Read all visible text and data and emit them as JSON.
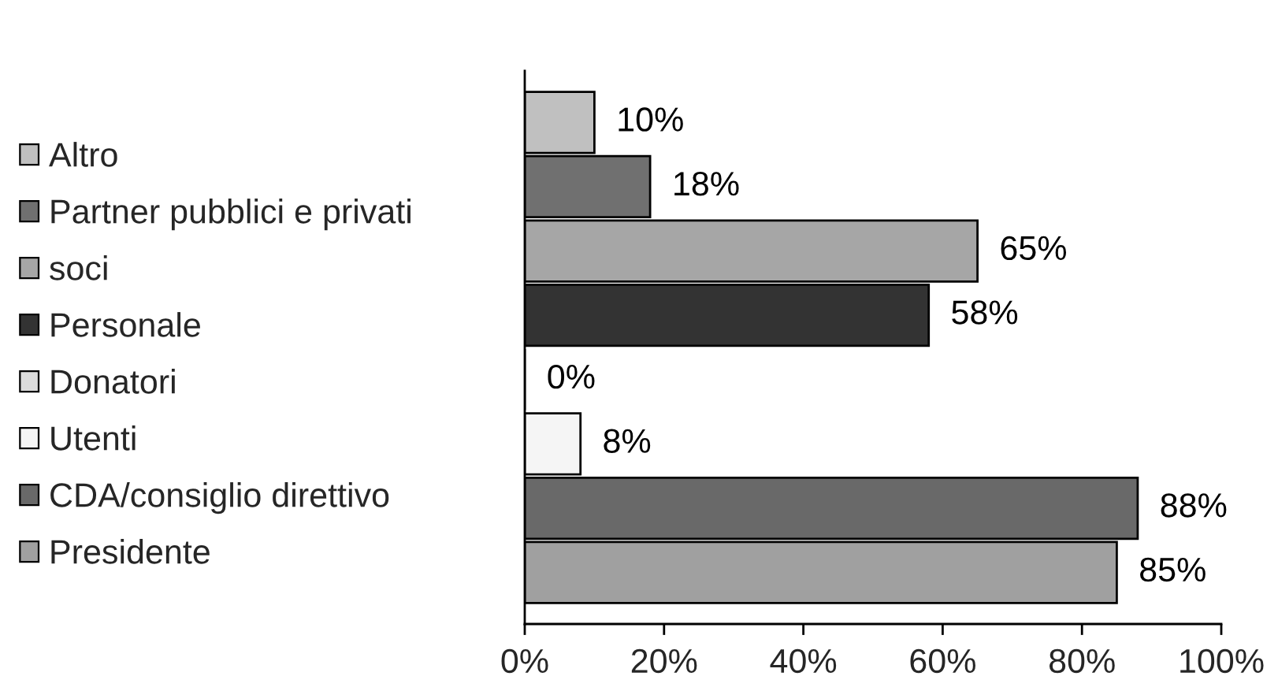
{
  "chart_data": {
    "type": "bar",
    "orientation": "horizontal",
    "stacked": true,
    "categories": [
      null,
      null,
      null,
      null,
      null,
      null,
      null,
      null
    ],
    "series": [
      {
        "name": "Altro",
        "color": "#c0c0c0",
        "values": [
          10,
          null,
          null,
          null,
          null,
          null,
          null,
          null
        ],
        "value_labels": [
          "10%",
          null,
          null,
          null,
          null,
          null,
          null,
          null
        ]
      },
      {
        "name": "Partner pubblici e privati",
        "color": "#707070",
        "values": [
          null,
          18,
          null,
          null,
          null,
          null,
          null,
          null
        ],
        "value_labels": [
          null,
          "18%",
          null,
          null,
          null,
          null,
          null,
          null
        ]
      },
      {
        "name": "soci",
        "color": "#a6a6a6",
        "values": [
          null,
          null,
          65,
          null,
          null,
          null,
          null,
          null
        ],
        "value_labels": [
          null,
          null,
          "65%",
          null,
          null,
          null,
          null,
          null
        ]
      },
      {
        "name": "Personale",
        "color": "#333333",
        "values": [
          null,
          null,
          null,
          58,
          null,
          null,
          null,
          null
        ],
        "value_labels": [
          null,
          null,
          null,
          "58%",
          null,
          null,
          null,
          null
        ]
      },
      {
        "name": "Donatori",
        "color": "#dcdcdc",
        "values": [
          null,
          null,
          null,
          null,
          0,
          null,
          null,
          null
        ],
        "value_labels": [
          null,
          null,
          null,
          null,
          "0%",
          null,
          null,
          null
        ]
      },
      {
        "name": "Utenti",
        "color": "#f5f5f5",
        "values": [
          null,
          null,
          null,
          null,
          null,
          8,
          null,
          null
        ],
        "value_labels": [
          null,
          null,
          null,
          null,
          null,
          "8%",
          null,
          null
        ]
      },
      {
        "name": "CDA/consiglio direttivo",
        "color": "#696969",
        "values": [
          null,
          null,
          null,
          null,
          null,
          null,
          88,
          null
        ],
        "value_labels": [
          null,
          null,
          null,
          null,
          null,
          null,
          "88%",
          null
        ]
      },
      {
        "name": "Presidente",
        "color": "#a0a0a0",
        "values": [
          null,
          null,
          null,
          null,
          null,
          null,
          null,
          85
        ],
        "value_labels": [
          null,
          null,
          null,
          null,
          null,
          null,
          null,
          "85%"
        ]
      }
    ],
    "xlim": [
      0,
      100
    ],
    "xticks": [
      {
        "value": 0,
        "label": "0%"
      },
      {
        "value": 20,
        "label": "20%"
      },
      {
        "value": 40,
        "label": "40%"
      },
      {
        "value": 60,
        "label": "60%"
      },
      {
        "value": 80,
        "label": "80%"
      },
      {
        "value": 100,
        "label": "100%"
      }
    ],
    "tick_labels": "x",
    "legend": "left"
  }
}
